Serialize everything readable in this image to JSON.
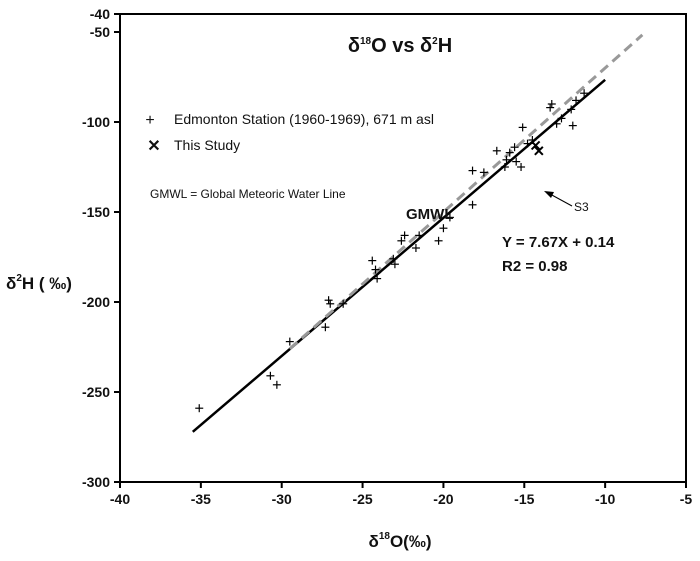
{
  "chart_data": {
    "type": "scatter",
    "title": {
      "delta": "δ",
      "sup1": "18",
      "mid": "O vs ",
      "sup2": "2",
      "end": "H"
    },
    "xlabel": {
      "delta": "δ",
      "sup": "18",
      "text": "O(‰)"
    },
    "ylabel": {
      "delta": "δ",
      "sup": "2",
      "text": "H ( ‰)"
    },
    "xlim": [
      -40,
      -5
    ],
    "ylim": [
      -300,
      -40
    ],
    "xticks": [
      -40,
      -35,
      -30,
      -25,
      -20,
      -15,
      -10,
      -5
    ],
    "yticks": [
      -300,
      -250,
      -200,
      -150,
      -100,
      -50,
      -40
    ],
    "legend": {
      "position": "top-left",
      "items": [
        {
          "marker": "+",
          "label": "Edmonton Station (1960-1969), 671 m asl"
        },
        {
          "marker": "✕",
          "label": "This Study"
        }
      ]
    },
    "note": "GMWL = Global Meteoric Water Line",
    "gmwl_label": "GMWL",
    "equation": "Y = 7.67X + 0.14",
    "r2": "R2 = 0.98",
    "point_label": "S3",
    "series": [
      {
        "name": "Edmonton Station (1960-1969), 671 m asl",
        "marker": "+",
        "points": [
          [
            -35.1,
            -259
          ],
          [
            -30.7,
            -241
          ],
          [
            -30.3,
            -246
          ],
          [
            -29.5,
            -222
          ],
          [
            -27.3,
            -214
          ],
          [
            -27.1,
            -199
          ],
          [
            -27.0,
            -201
          ],
          [
            -26.2,
            -201
          ],
          [
            -24.4,
            -177
          ],
          [
            -24.2,
            -182
          ],
          [
            -24.1,
            -187
          ],
          [
            -23.1,
            -176
          ],
          [
            -23.0,
            -179
          ],
          [
            -22.6,
            -166
          ],
          [
            -22.4,
            -163
          ],
          [
            -21.7,
            -170
          ],
          [
            -21.5,
            -163
          ],
          [
            -20.3,
            -166
          ],
          [
            -20.0,
            -159
          ],
          [
            -19.6,
            -153
          ],
          [
            -18.2,
            -127
          ],
          [
            -18.2,
            -146
          ],
          [
            -17.5,
            -128
          ],
          [
            -16.7,
            -116
          ],
          [
            -16.2,
            -125
          ],
          [
            -16.1,
            -121
          ],
          [
            -15.9,
            -117
          ],
          [
            -15.6,
            -114
          ],
          [
            -15.5,
            -122
          ],
          [
            -15.2,
            -125
          ],
          [
            -15.1,
            -103
          ],
          [
            -14.8,
            -112
          ],
          [
            -14.5,
            -110
          ],
          [
            -13.4,
            -92
          ],
          [
            -13.3,
            -90
          ],
          [
            -13.0,
            -101
          ],
          [
            -12.7,
            -98
          ],
          [
            -12.1,
            -93
          ],
          [
            -12.0,
            -102
          ],
          [
            -11.8,
            -88
          ],
          [
            -11.3,
            -84
          ]
        ]
      },
      {
        "name": "This Study",
        "marker": "x",
        "points": [
          [
            -14.3,
            -113
          ],
          [
            -14.1,
            -116
          ]
        ]
      }
    ],
    "lines": [
      {
        "name": "regression",
        "style": "solid",
        "color": "#000000",
        "slope": 7.67,
        "intercept": 0.14,
        "x_range": [
          -35.5,
          -10.0
        ]
      },
      {
        "name": "GMWL",
        "style": "dashed",
        "color": "#999999",
        "slope": 8,
        "intercept": 10,
        "x_range": [
          -29.5,
          -7.7
        ]
      }
    ]
  }
}
